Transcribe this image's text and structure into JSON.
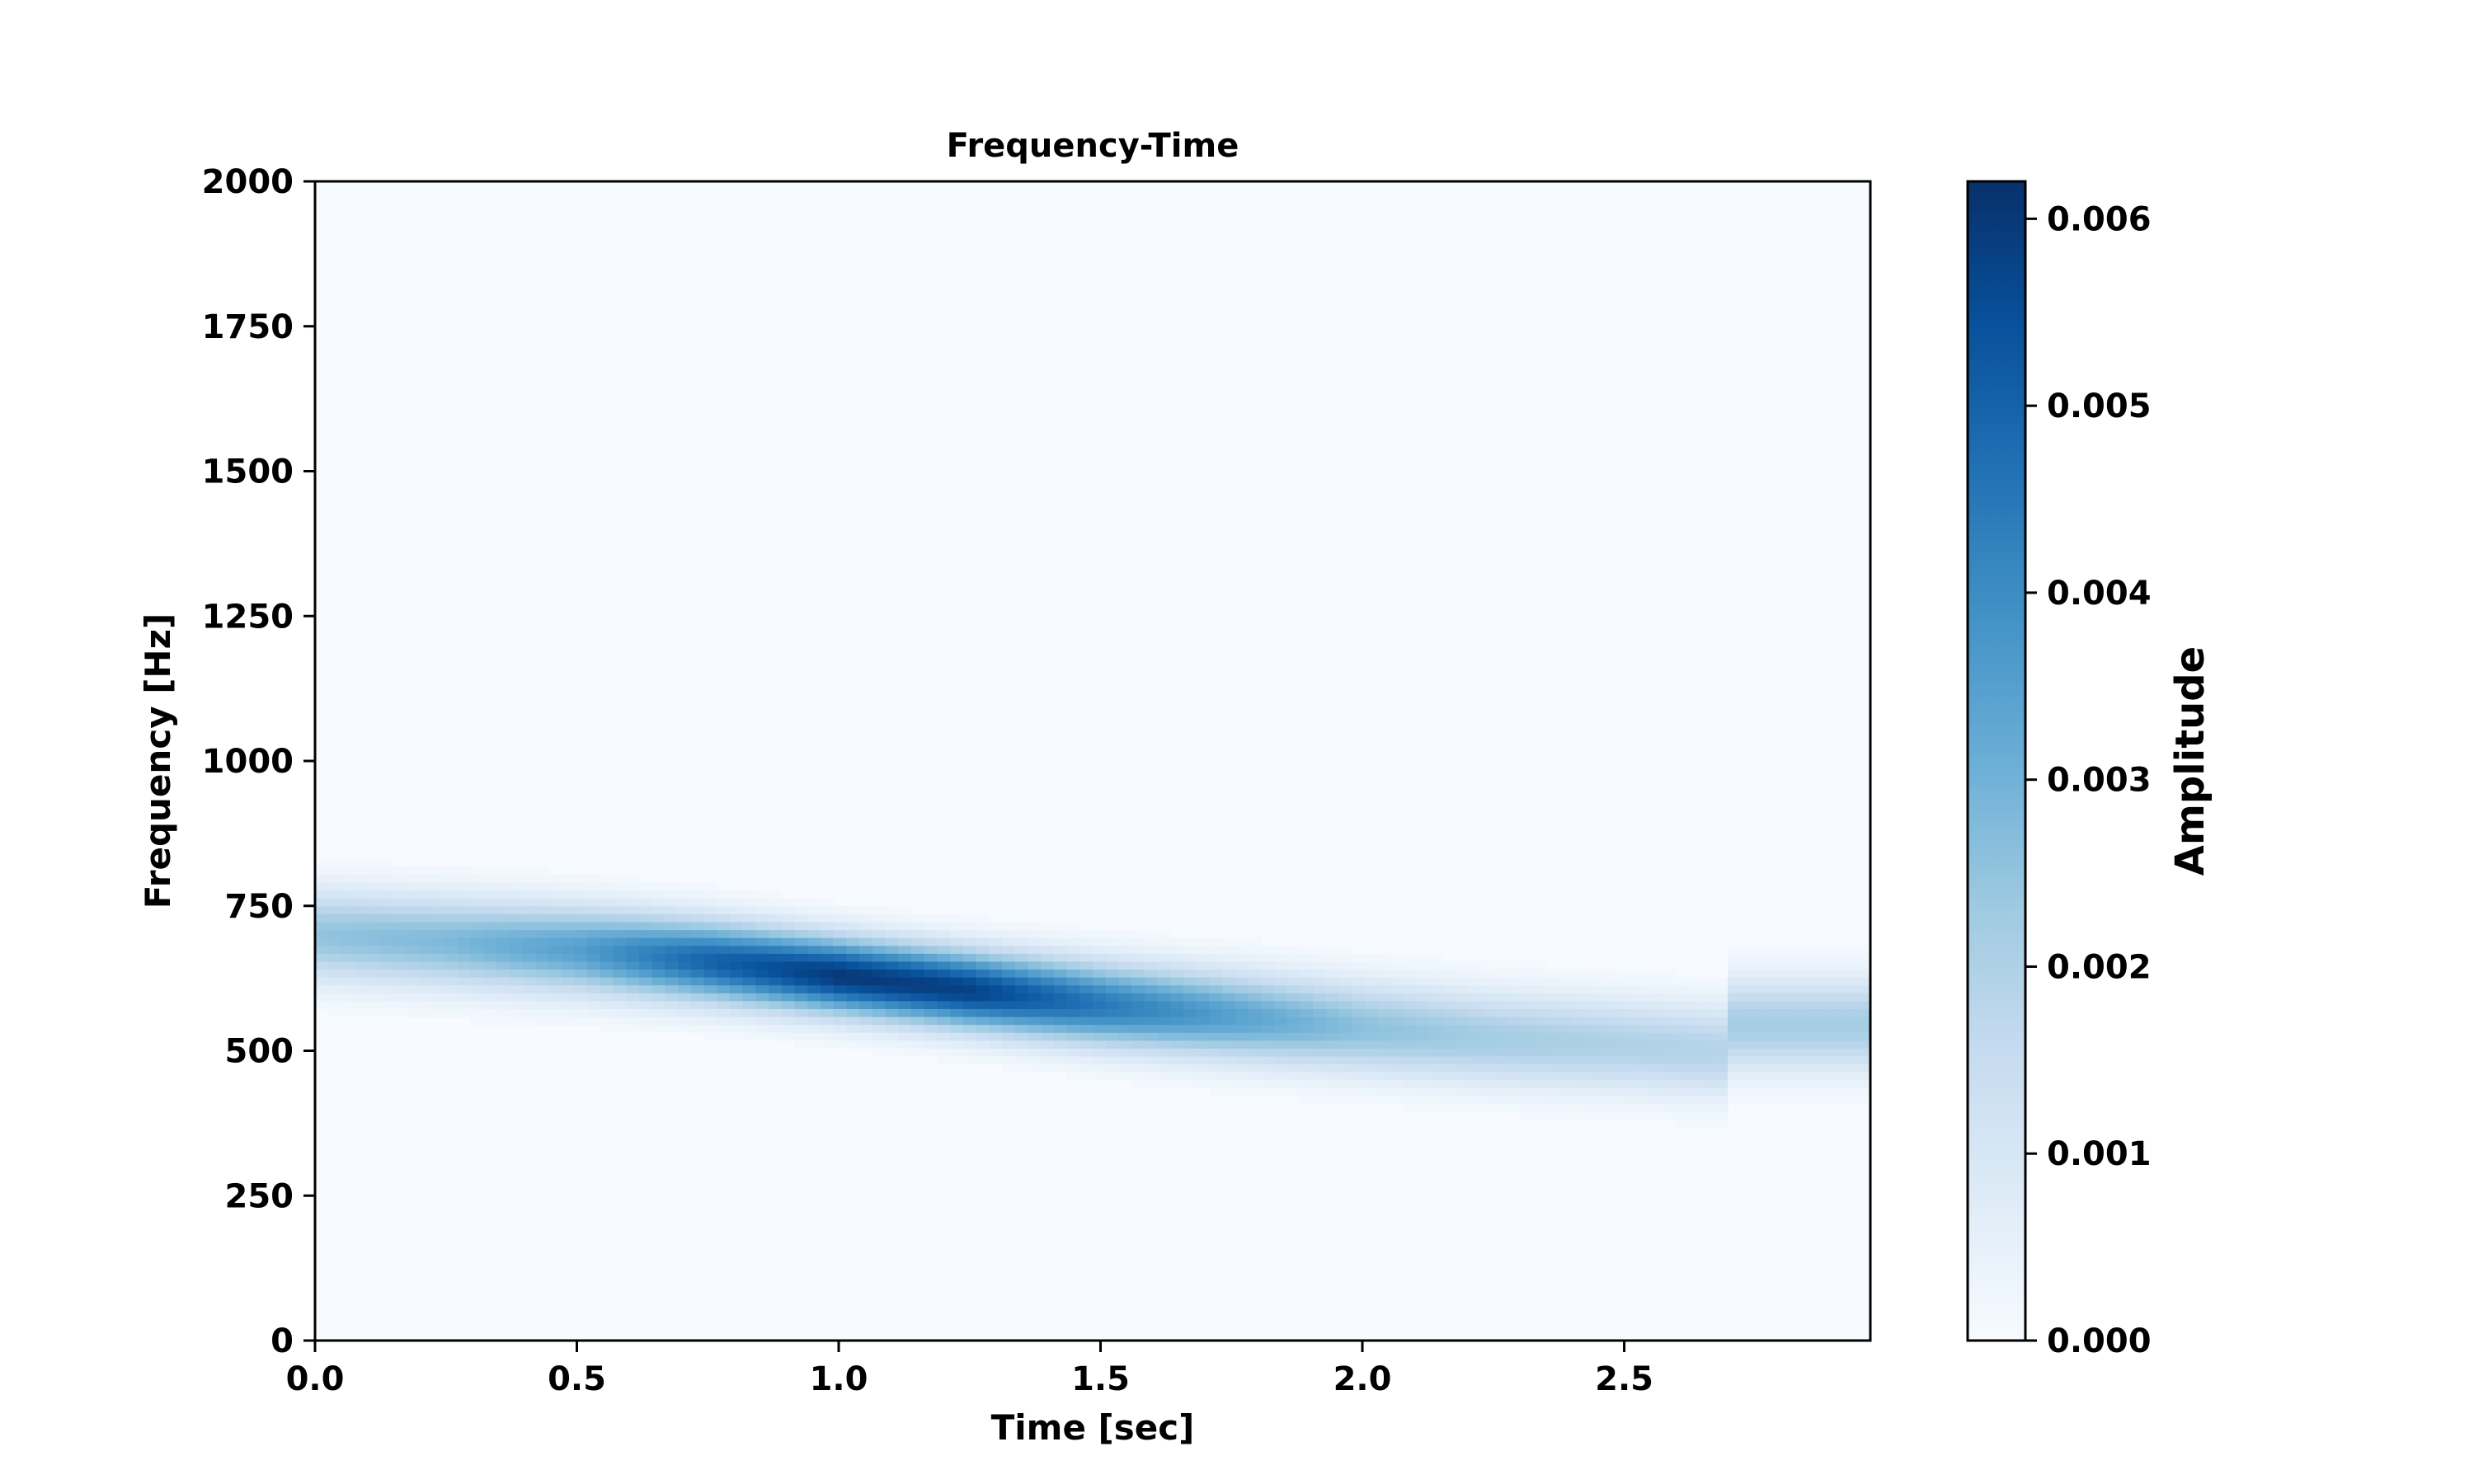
{
  "chart_data": {
    "type": "heatmap",
    "title": "Frequency-Time",
    "xlabel": "Time [sec]",
    "ylabel": "Frequency [Hz]",
    "xlim": [
      0,
      2.97
    ],
    "ylim": [
      0,
      2000
    ],
    "xticks": [
      "0.0",
      "0.5",
      "1.0",
      "1.5",
      "2.0",
      "2.5"
    ],
    "yticks": [
      "0",
      "250",
      "500",
      "750",
      "1000",
      "1250",
      "1500",
      "1750",
      "2000"
    ],
    "colormap": "Blues",
    "colorbar": {
      "label": "Amplitude",
      "range": [
        0,
        0.0062
      ],
      "ticks": [
        "0.000",
        "0.001",
        "0.002",
        "0.003",
        "0.004",
        "0.005",
        "0.006"
      ]
    },
    "grid": false,
    "ridge": {
      "time_sec": [
        0.0,
        0.25,
        0.5,
        0.75,
        1.0,
        1.25,
        1.5,
        1.75,
        2.0,
        2.25,
        2.5,
        2.69,
        2.7,
        2.97
      ],
      "frequency_hz": [
        700,
        688,
        675,
        655,
        630,
        605,
        580,
        560,
        540,
        522,
        510,
        500,
        545,
        545
      ],
      "amplitude": [
        0.0025,
        0.0028,
        0.0035,
        0.005,
        0.006,
        0.0058,
        0.0045,
        0.0035,
        0.0026,
        0.0022,
        0.002,
        0.0019,
        0.0022,
        0.0022
      ]
    }
  }
}
